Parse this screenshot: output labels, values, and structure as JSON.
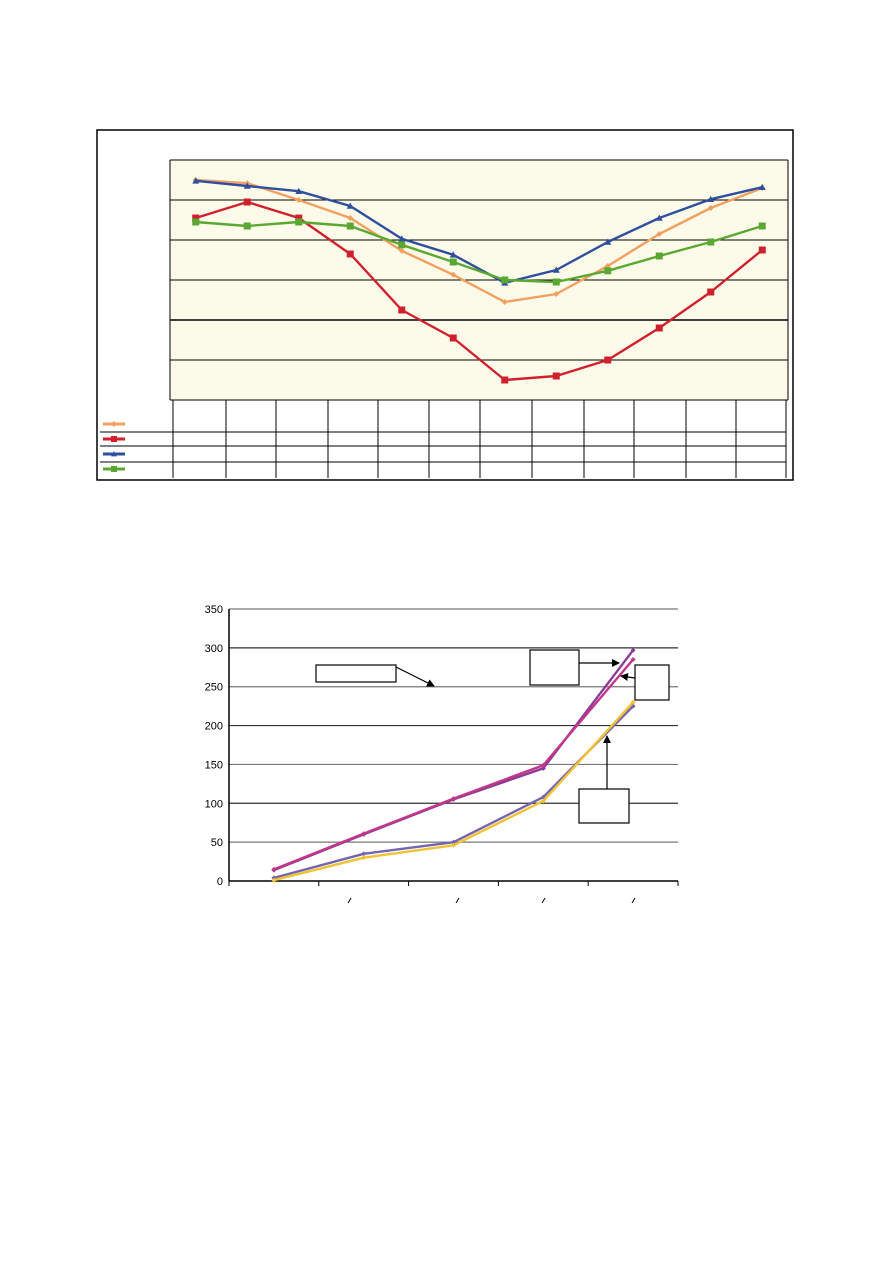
{
  "chart_data": [
    {
      "type": "line",
      "categories": [
        "",
        "",
        "",
        "",
        "",
        "",
        "",
        "",
        "",
        "",
        "",
        ""
      ],
      "ylim": [
        0,
        6
      ],
      "y_ticks": [
        0,
        1,
        2,
        3,
        4,
        5,
        6
      ],
      "grid": true,
      "legend": "data-table-left",
      "series": [
        {
          "color": "#f2a061",
          "marker": "diamond",
          "values": [
            5.5,
            5.42,
            5.0,
            4.55,
            3.73,
            3.13,
            2.45,
            2.65,
            3.35,
            4.15,
            4.8,
            5.3
          ]
        },
        {
          "color": "#d0202e",
          "marker": "square",
          "values": [
            4.55,
            4.95,
            4.55,
            3.65,
            2.25,
            1.55,
            0.5,
            0.6,
            1.0,
            1.8,
            2.7,
            3.75
          ]
        },
        {
          "color": "#2f4f9e",
          "marker": "triangle",
          "values": [
            5.48,
            5.35,
            5.22,
            4.85,
            4.03,
            3.63,
            2.93,
            3.25,
            3.95,
            4.55,
            5.02,
            5.32
          ]
        },
        {
          "color": "#5aa832",
          "marker": "square",
          "values": [
            4.45,
            4.35,
            4.45,
            4.35,
            3.88,
            3.45,
            3.0,
            2.95,
            3.23,
            3.6,
            3.95,
            4.35
          ]
        }
      ]
    },
    {
      "type": "line",
      "y_ticks": [
        "0",
        "50",
        "100",
        "150",
        "200",
        "250",
        "300",
        "350"
      ],
      "ylim": [
        0,
        350
      ],
      "xlim": [
        0,
        5
      ],
      "grid": true,
      "series": [
        {
          "color": "#8a3c96",
          "marker": "diamond",
          "x": [
            0.5,
            1.5,
            2.5,
            3.5,
            4.5
          ],
          "values": [
            14,
            60,
            105,
            145,
            297
          ]
        },
        {
          "color": "#c1378a",
          "marker": "diamond",
          "x": [
            0.5,
            1.5,
            2.5,
            3.5,
            4.5
          ],
          "values": [
            15,
            61,
            106,
            149,
            285
          ]
        },
        {
          "color": "#7464b0",
          "marker": "diamond",
          "x": [
            0.5,
            1.5,
            2.5,
            3.5,
            4.5
          ],
          "values": [
            4,
            35,
            50,
            108,
            225
          ]
        },
        {
          "color": "#f1c232",
          "marker": "diamond",
          "x": [
            0.5,
            1.5,
            2.5,
            3.5,
            4.5
          ],
          "values": [
            1,
            30,
            46,
            103,
            230
          ]
        }
      ],
      "annotation_boxes": [
        "",
        "",
        "",
        ""
      ]
    }
  ]
}
